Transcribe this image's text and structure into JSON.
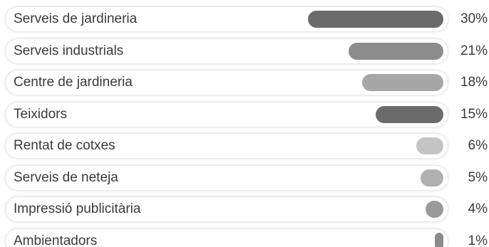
{
  "chart_data": {
    "type": "bar",
    "orientation": "horizontal",
    "title": "",
    "xlabel": "",
    "ylabel": "",
    "xlim": [
      0,
      30
    ],
    "categories": [
      "Serveis de jardineria",
      "Serveis industrials",
      "Centre de jardineria",
      "Teixidors",
      "Rentat de cotxes",
      "Serveis de neteja",
      "Impressió publicitària",
      "Ambientadors"
    ],
    "values": [
      30,
      21,
      18,
      15,
      6,
      5,
      4,
      1
    ],
    "value_labels": [
      "30%",
      "21%",
      "18%",
      "15%",
      "6%",
      "5%",
      "4%",
      "1%"
    ],
    "colors": [
      "#6b6b6b",
      "#8c8c8c",
      "#a6a6a6",
      "#6b6b6b",
      "#c4c4c4",
      "#b0b0b0",
      "#9a9a9a",
      "#8c8c8c"
    ],
    "grid": false,
    "legend": "none"
  }
}
